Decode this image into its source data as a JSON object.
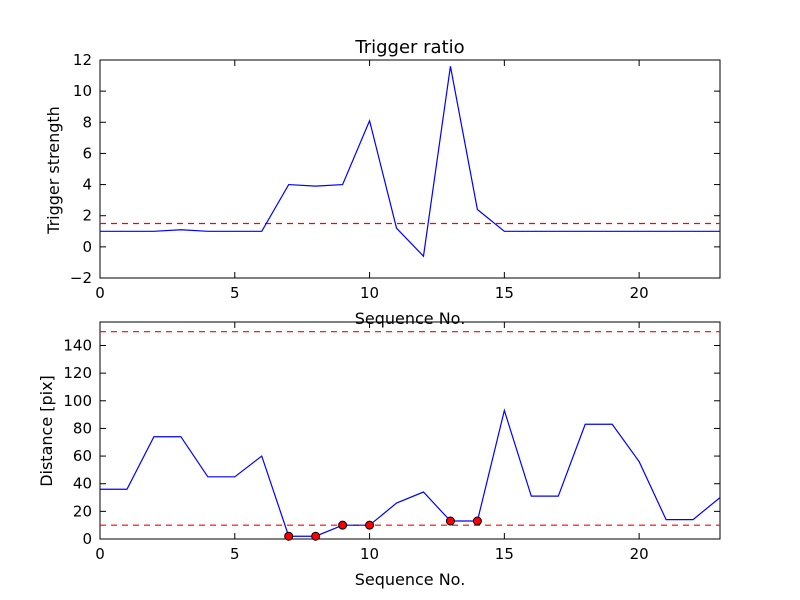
{
  "chart_data": [
    {
      "type": "line",
      "title": "Trigger ratio",
      "xlabel": "Sequence No.",
      "ylabel": "Trigger strength",
      "xlim": [
        0,
        23
      ],
      "ylim": [
        -2,
        12
      ],
      "xticks": [
        0,
        5,
        10,
        15,
        20
      ],
      "yticks": [
        -2,
        0,
        2,
        4,
        6,
        8,
        10,
        12
      ],
      "grid": false,
      "series": [
        {
          "color": "#0000ff",
          "x": [
            0,
            1,
            2,
            3,
            4,
            5,
            6,
            7,
            8,
            9,
            10,
            11,
            12,
            13,
            14,
            15,
            16,
            17,
            18,
            19,
            20,
            21,
            22,
            23
          ],
          "y": [
            1.0,
            1.0,
            1.0,
            1.1,
            1.0,
            1.0,
            1.0,
            4.0,
            3.9,
            4.0,
            8.1,
            1.2,
            -0.6,
            11.6,
            2.4,
            1.0,
            1.0,
            1.0,
            1.0,
            1.0,
            1.0,
            1.0,
            1.0,
            1.0
          ]
        }
      ],
      "hlines": [
        {
          "y": 1.5,
          "color": "#ff0000",
          "style": "dashed"
        }
      ]
    },
    {
      "type": "line",
      "title": "",
      "xlabel": "Sequence No.",
      "ylabel": "Distance [pix]",
      "xlim": [
        0,
        23
      ],
      "ylim": [
        0,
        157
      ],
      "xticks": [
        0,
        5,
        10,
        15,
        20
      ],
      "yticks": [
        0,
        20,
        40,
        60,
        80,
        100,
        120,
        140
      ],
      "grid": false,
      "series": [
        {
          "color": "#0000ff",
          "x": [
            0,
            1,
            2,
            3,
            4,
            5,
            6,
            7,
            8,
            9,
            10,
            11,
            12,
            13,
            14,
            15,
            16,
            17,
            18,
            19,
            20,
            21,
            22,
            23
          ],
          "y": [
            36,
            36,
            74,
            74,
            45,
            45,
            60,
            2,
            2,
            10,
            10,
            26,
            34,
            13,
            13,
            93,
            31,
            31,
            83,
            83,
            56,
            14,
            14,
            30
          ]
        }
      ],
      "markers": {
        "color": "#ff0000",
        "x": [
          7,
          8,
          9,
          10,
          13,
          14
        ],
        "y": [
          2,
          2,
          10,
          10,
          13,
          13
        ]
      },
      "hlines": [
        {
          "y": 150,
          "color": "#ff0000",
          "style": "dashed"
        },
        {
          "y": 10,
          "color": "#ff0000",
          "style": "dashed"
        }
      ]
    }
  ]
}
